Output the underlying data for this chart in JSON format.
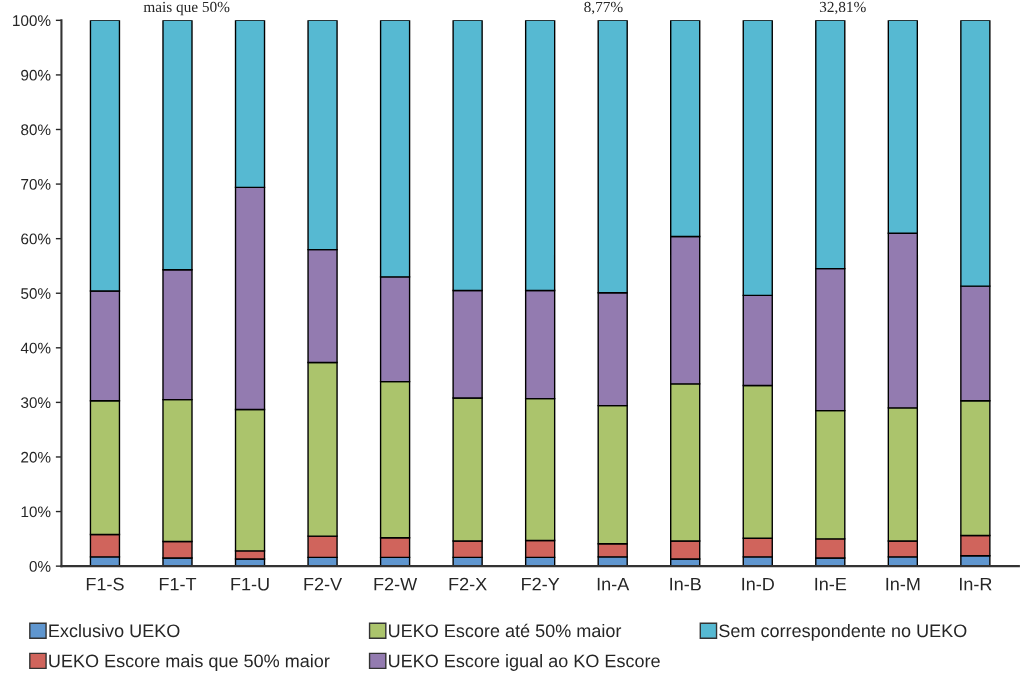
{
  "chart_data": {
    "type": "bar",
    "stacked": true,
    "categories": [
      "F1-S",
      "F1-T",
      "F1-U",
      "F2-V",
      "F2-W",
      "F2-X",
      "F2-Y",
      "In-A",
      "In-B",
      "In-D",
      "In-E",
      "In-M",
      "In-R"
    ],
    "series": [
      {
        "name": "Exclusivo UEKO",
        "color": "#5f96cf",
        "values": [
          1.7,
          1.5,
          1.3,
          1.6,
          1.6,
          1.6,
          1.6,
          1.7,
          1.3,
          1.7,
          1.5,
          1.7,
          1.9
        ]
      },
      {
        "name": "UEKO Escore mais que 50% maior",
        "color": "#d0645c",
        "values": [
          4.1,
          3.0,
          1.5,
          3.9,
          3.6,
          3.0,
          3.1,
          2.4,
          3.3,
          3.4,
          3.5,
          2.9,
          3.7
        ]
      },
      {
        "name": "UEKO Escore até 50% maior",
        "color": "#abc46c",
        "values": [
          24.5,
          26.0,
          25.9,
          31.8,
          28.6,
          26.2,
          26.0,
          25.3,
          28.8,
          28.0,
          23.5,
          24.4,
          24.7
        ]
      },
      {
        "name": "UEKO Escore igual ao KO Escore",
        "color": "#937bb0",
        "values": [
          20.1,
          23.8,
          40.7,
          20.7,
          19.2,
          19.7,
          19.8,
          20.7,
          27.0,
          16.5,
          26.0,
          32.0,
          21.0
        ]
      },
      {
        "name": "Sem correspondente no UEKO",
        "color": "#56b9d2",
        "values": [
          49.6,
          45.7,
          30.6,
          42.0,
          47.0,
          49.5,
          49.5,
          49.9,
          39.6,
          50.4,
          45.5,
          39.0,
          48.7
        ]
      }
    ],
    "ylim": [
      0,
      100
    ],
    "yticks": [
      {
        "value": 0,
        "label": "0%"
      },
      {
        "value": 10,
        "label": "10%"
      },
      {
        "value": 20,
        "label": "20%"
      },
      {
        "value": 30,
        "label": "30%"
      },
      {
        "value": 40,
        "label": "40%"
      },
      {
        "value": 50,
        "label": "50%"
      },
      {
        "value": 60,
        "label": "60%"
      },
      {
        "value": 70,
        "label": "70%"
      },
      {
        "value": 80,
        "label": "80%"
      },
      {
        "value": 90,
        "label": "90%"
      },
      {
        "value": 100,
        "label": "100%"
      }
    ],
    "grid": false,
    "legend": "bottom",
    "annotations": [
      "mais que 50%",
      "8,77%",
      "32,81%"
    ]
  }
}
